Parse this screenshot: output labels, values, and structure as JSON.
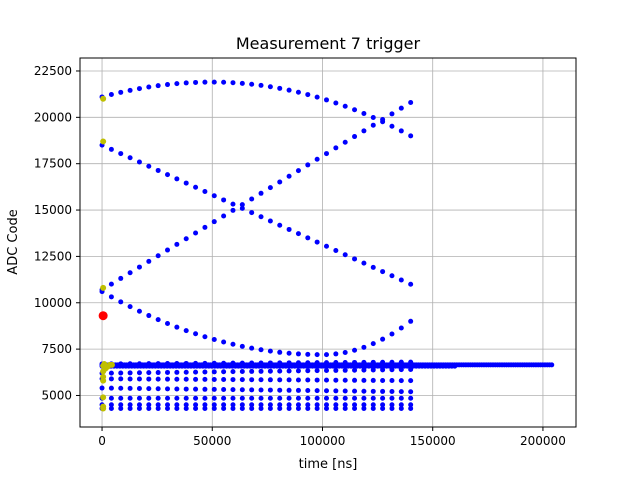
{
  "chart_data": {
    "type": "scatter",
    "title": "Measurement 7 trigger",
    "xlabel": "time [ns]",
    "ylabel": "ADC Code",
    "xlim": [
      -10000,
      215000
    ],
    "ylim": [
      3300,
      23200
    ],
    "x_ticks": [
      0,
      50000,
      100000,
      150000,
      200000
    ],
    "x_tick_labels": [
      "0",
      "50000",
      "100000",
      "150000",
      "200000"
    ],
    "y_ticks": [
      5000,
      7500,
      10000,
      12500,
      15000,
      17500,
      20000,
      22500
    ],
    "y_tick_labels": [
      "5000",
      "7500",
      "10000",
      "12500",
      "15000",
      "17500",
      "20000",
      "22500"
    ],
    "grid": true,
    "legend": "none",
    "colors": {
      "samples": "#0000ff",
      "pretrigger": "#bfbf00",
      "trigger": "#ff0000"
    },
    "traces": [
      {
        "color": "#0000ff",
        "x_start": 0,
        "x_end": 140000,
        "count": 34,
        "y_start": 21100,
        "y_peak": 21900,
        "peak_x": 50000,
        "y_end": 19000,
        "shape": "arc"
      },
      {
        "color": "#0000ff",
        "x_start": 0,
        "x_end": 140000,
        "count": 34,
        "y_start": 18500,
        "y_end": 11000,
        "shape": "line"
      },
      {
        "color": "#0000ff",
        "x_start": 0,
        "x_end": 140000,
        "count": 34,
        "y_start": 10700,
        "y_end": 20800,
        "shape": "line"
      },
      {
        "color": "#0000ff",
        "x_start": 0,
        "x_end": 140000,
        "count": 34,
        "y_start": 10600,
        "y_min": 7200,
        "min_x": 100000,
        "y_end": 9000,
        "shape": "valley"
      },
      {
        "color": "#0000ff",
        "x_start": 0,
        "x_end": 140000,
        "count": 34,
        "y_start": 6700,
        "y_min": 6800,
        "min_x": 100000,
        "y_end": 6800,
        "shape": "line"
      },
      {
        "color": "#0000ff",
        "x_start": 0,
        "x_end": 140000,
        "count": 34,
        "y_start": 6200,
        "y_end": 6400,
        "shape": "line"
      },
      {
        "color": "#0000ff",
        "x_start": 0,
        "x_end": 140000,
        "count": 34,
        "y_start": 5900,
        "y_end": 5800,
        "shape": "line"
      },
      {
        "color": "#0000ff",
        "x_start": 0,
        "x_end": 140000,
        "count": 34,
        "y_start": 5400,
        "y_end": 5200,
        "shape": "line"
      },
      {
        "color": "#0000ff",
        "x_start": 0,
        "x_end": 140000,
        "count": 34,
        "y_start": 4850,
        "y_end": 4850,
        "shape": "line"
      },
      {
        "color": "#0000ff",
        "x_start": 0,
        "x_end": 140000,
        "count": 34,
        "y_start": 4500,
        "y_end": 4500,
        "shape": "line"
      },
      {
        "color": "#0000ff",
        "x_start": 0,
        "x_end": 140000,
        "count": 34,
        "y_start": 4300,
        "y_end": 4300,
        "shape": "line"
      },
      {
        "color": "#0000ff",
        "x_start": 0,
        "x_end": 204000,
        "count": 200,
        "y_start": 6650,
        "y_end": 6650,
        "shape": "line"
      },
      {
        "color": "#0000ff",
        "x_start": 0,
        "x_end": 160000,
        "count": 120,
        "y_start": 6580,
        "y_end": 6580,
        "shape": "line"
      }
    ],
    "pretrigger_points": [
      [
        500,
        21000
      ],
      [
        500,
        18700
      ],
      [
        500,
        10800
      ],
      [
        500,
        6600
      ],
      [
        500,
        6300
      ],
      [
        500,
        6000
      ],
      [
        500,
        5800
      ],
      [
        500,
        4900
      ],
      [
        500,
        4400
      ],
      [
        500,
        4300
      ],
      [
        1500,
        6450
      ],
      [
        2500,
        6550
      ],
      [
        3500,
        6650
      ],
      [
        4500,
        6650
      ],
      [
        1000,
        6700
      ]
    ],
    "trigger_point": [
      500,
      9300
    ]
  }
}
